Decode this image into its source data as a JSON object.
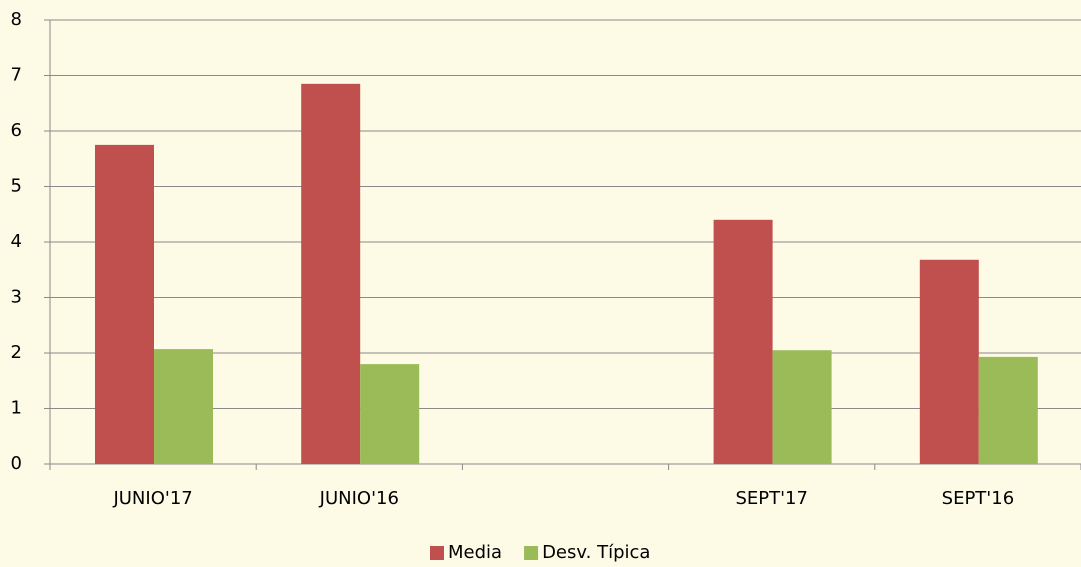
{
  "chart_data": {
    "type": "bar",
    "categories": [
      "JUNIO'17",
      "JUNIO'16",
      null,
      "SEPT'17",
      "SEPT'16"
    ],
    "series": [
      {
        "name": "Media",
        "color": "#c0504d",
        "values": [
          5.75,
          6.85,
          null,
          4.4,
          3.68
        ]
      },
      {
        "name": "Desv. Típica",
        "color": "#9bbb59",
        "values": [
          2.07,
          1.8,
          null,
          2.05,
          1.93
        ]
      }
    ],
    "ylim": [
      0,
      8
    ],
    "yticks": [
      0,
      1,
      2,
      3,
      4,
      5,
      6,
      7,
      8
    ],
    "grid": true,
    "legend": "bottom"
  }
}
